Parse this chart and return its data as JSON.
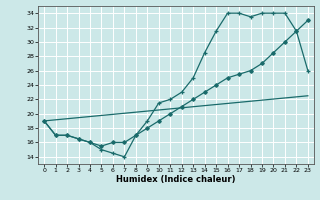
{
  "xlabel": "Humidex (Indice chaleur)",
  "ylabel": "",
  "xlim": [
    -0.5,
    23.5
  ],
  "ylim": [
    13,
    35
  ],
  "xticks": [
    0,
    1,
    2,
    3,
    4,
    5,
    6,
    7,
    8,
    9,
    10,
    11,
    12,
    13,
    14,
    15,
    16,
    17,
    18,
    19,
    20,
    21,
    22,
    23
  ],
  "yticks": [
    14,
    16,
    18,
    20,
    22,
    24,
    26,
    28,
    30,
    32,
    34
  ],
  "bg_color": "#cce8e8",
  "line_color": "#1a6b6b",
  "grid_color": "#ffffff",
  "line1_x": [
    0,
    1,
    2,
    3,
    4,
    5,
    6,
    7,
    8,
    9,
    10,
    11,
    12,
    13,
    14,
    15,
    16,
    17,
    18,
    19,
    20,
    21,
    22,
    23
  ],
  "line1_y": [
    19,
    17,
    17,
    16.5,
    16,
    15,
    14.5,
    14,
    17,
    19,
    21.5,
    22,
    23,
    25,
    28.5,
    31.5,
    34,
    34,
    33.5,
    34,
    34,
    34,
    31.5,
    26
  ],
  "line2_x": [
    0,
    1,
    2,
    3,
    4,
    5,
    6,
    7,
    8,
    9,
    10,
    11,
    12,
    13,
    14,
    15,
    16,
    17,
    18,
    19,
    20,
    21,
    22,
    23
  ],
  "line2_y": [
    19,
    17,
    17,
    16.5,
    16,
    15.5,
    16,
    16,
    17,
    18,
    19,
    20,
    21,
    22,
    23,
    24,
    25,
    25.5,
    26,
    27,
    28.5,
    30,
    31.5,
    33
  ],
  "line3_x": [
    0,
    23
  ],
  "line3_y": [
    19,
    22.5
  ]
}
